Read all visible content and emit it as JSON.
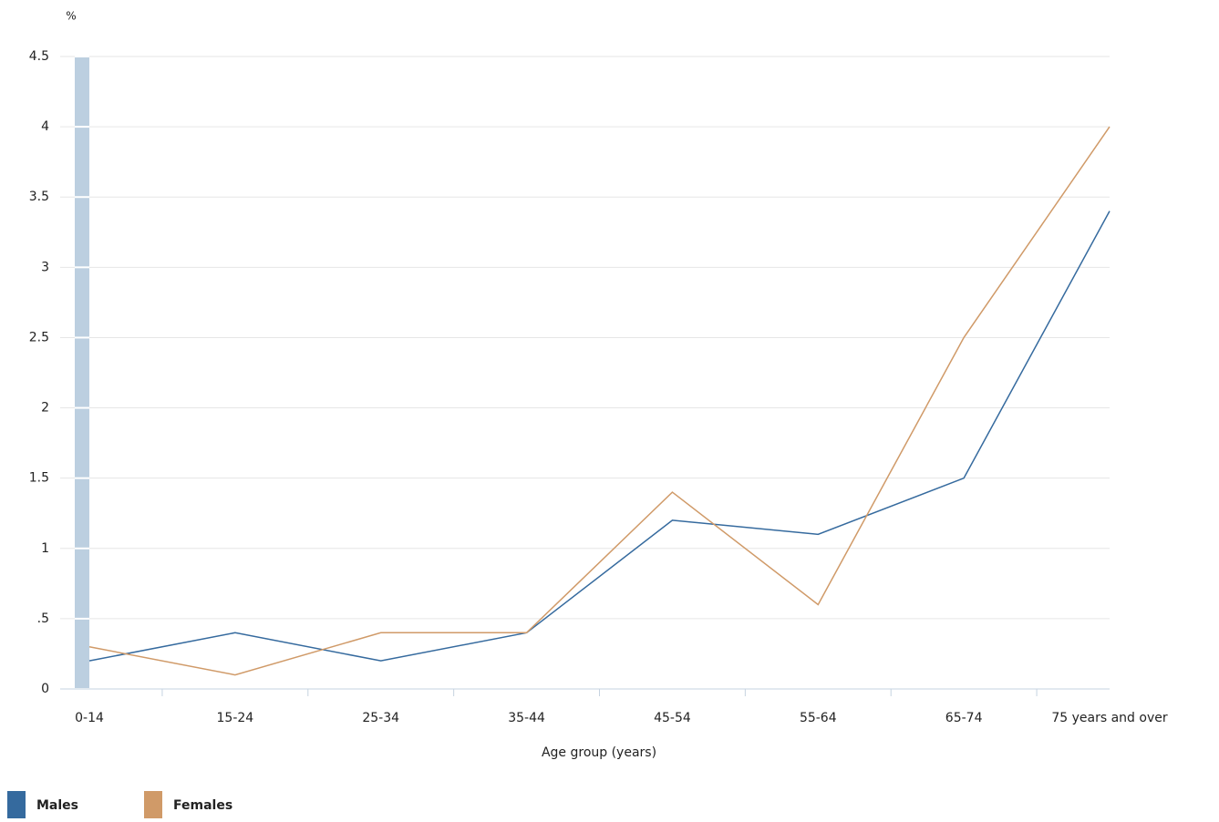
{
  "chart_data": {
    "type": "line",
    "y_unit": "%",
    "x_label": "Age group (years)",
    "categories": [
      "0-14",
      "15-24",
      "25-34",
      "35-44",
      "45-54",
      "55-64",
      "65-74",
      "75 years and over"
    ],
    "series": [
      {
        "name": "Males",
        "color": "#356a9e",
        "values": [
          0.2,
          0.4,
          0.2,
          0.4,
          1.2,
          1.1,
          1.5,
          3.4
        ]
      },
      {
        "name": "Females",
        "color": "#d09a68",
        "values": [
          0.3,
          0.1,
          0.4,
          0.4,
          1.4,
          0.6,
          2.5,
          4.0
        ]
      }
    ],
    "ylim": [
      0,
      4.5
    ],
    "yticks": [
      0,
      {
        "value": 0.5,
        "label": ".5"
      },
      1,
      1.5,
      2,
      2.5,
      3,
      3.5,
      4,
      4.5
    ],
    "grid": true
  }
}
